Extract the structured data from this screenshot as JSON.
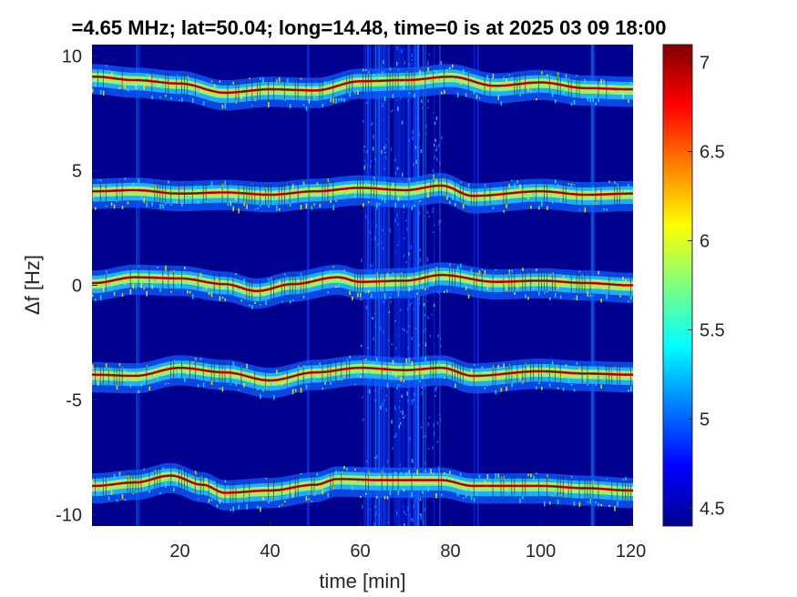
{
  "chart_data": {
    "type": "heatmap",
    "title": "=4.65 MHz;  lat=50.04; long=14.48, time=0 is at 2025 03 09 18:00",
    "xlabel": "time [min]",
    "ylabel": "Δf [Hz]",
    "xlim": [
      0.5,
      120.5
    ],
    "ylim": [
      -10.5,
      10.5
    ],
    "x_ticks": [
      20,
      40,
      60,
      80,
      100,
      120
    ],
    "x_tick_labels": [
      "20",
      "40",
      "60",
      "80",
      "100",
      "120"
    ],
    "y_ticks": [
      10,
      5,
      0,
      -5,
      -10
    ],
    "y_tick_labels": [
      "10",
      "5",
      "0",
      "-5",
      "-10"
    ],
    "colorbar": {
      "colormap": "jet",
      "clim": [
        4.4,
        7.1
      ],
      "ticks": [
        7,
        6.5,
        6,
        5.5,
        5,
        4.5
      ],
      "tick_labels": [
        "7",
        "6.5",
        "6",
        "5.5",
        "5",
        "4.5"
      ]
    },
    "background_color": "#00008f",
    "traces": [
      {
        "center_hz": 9.0,
        "points": [
          [
            1,
            9.1
          ],
          [
            10,
            8.95
          ],
          [
            20,
            8.8
          ],
          [
            30,
            8.4
          ],
          [
            40,
            8.55
          ],
          [
            50,
            8.5
          ],
          [
            60,
            8.9
          ],
          [
            70,
            8.95
          ],
          [
            80,
            9.1
          ],
          [
            90,
            8.7
          ],
          [
            100,
            8.85
          ],
          [
            110,
            8.6
          ],
          [
            120,
            8.55
          ]
        ]
      },
      {
        "center_hz": 4.0,
        "points": [
          [
            1,
            4.1
          ],
          [
            10,
            4.15
          ],
          [
            20,
            4.0
          ],
          [
            30,
            4.05
          ],
          [
            40,
            3.95
          ],
          [
            50,
            4.1
          ],
          [
            60,
            4.25
          ],
          [
            70,
            4.15
          ],
          [
            78,
            4.35
          ],
          [
            85,
            3.9
          ],
          [
            100,
            4.1
          ],
          [
            110,
            3.95
          ],
          [
            120,
            4.0
          ]
        ]
      },
      {
        "center_hz": 0.0,
        "points": [
          [
            1,
            0.1
          ],
          [
            10,
            0.35
          ],
          [
            20,
            0.3
          ],
          [
            30,
            0.05
          ],
          [
            37,
            -0.25
          ],
          [
            45,
            0.05
          ],
          [
            55,
            0.35
          ],
          [
            60,
            0.15
          ],
          [
            70,
            0.2
          ],
          [
            78,
            0.45
          ],
          [
            90,
            0.15
          ],
          [
            100,
            0.2
          ],
          [
            110,
            0.1
          ],
          [
            120,
            0.0
          ]
        ]
      },
      {
        "center_hz": -4.0,
        "points": [
          [
            1,
            -3.9
          ],
          [
            10,
            -3.95
          ],
          [
            20,
            -3.6
          ],
          [
            30,
            -3.8
          ],
          [
            40,
            -4.15
          ],
          [
            50,
            -3.8
          ],
          [
            60,
            -3.6
          ],
          [
            70,
            -3.7
          ],
          [
            78,
            -3.6
          ],
          [
            85,
            -3.95
          ],
          [
            100,
            -3.75
          ],
          [
            110,
            -3.85
          ],
          [
            120,
            -3.9
          ]
        ]
      },
      {
        "center_hz": -8.6,
        "points": [
          [
            1,
            -8.75
          ],
          [
            10,
            -8.6
          ],
          [
            18,
            -8.3
          ],
          [
            25,
            -8.7
          ],
          [
            30,
            -9.05
          ],
          [
            40,
            -8.95
          ],
          [
            50,
            -8.7
          ],
          [
            55,
            -8.45
          ],
          [
            65,
            -8.5
          ],
          [
            78,
            -8.5
          ],
          [
            85,
            -8.75
          ],
          [
            100,
            -8.75
          ],
          [
            110,
            -8.85
          ],
          [
            120,
            -8.95
          ]
        ]
      }
    ],
    "noise_bursts_min": [
      [
        60,
        78
      ],
      [
        10,
        11
      ],
      [
        48,
        48.5
      ],
      [
        85,
        86
      ],
      [
        111,
        112
      ]
    ]
  }
}
